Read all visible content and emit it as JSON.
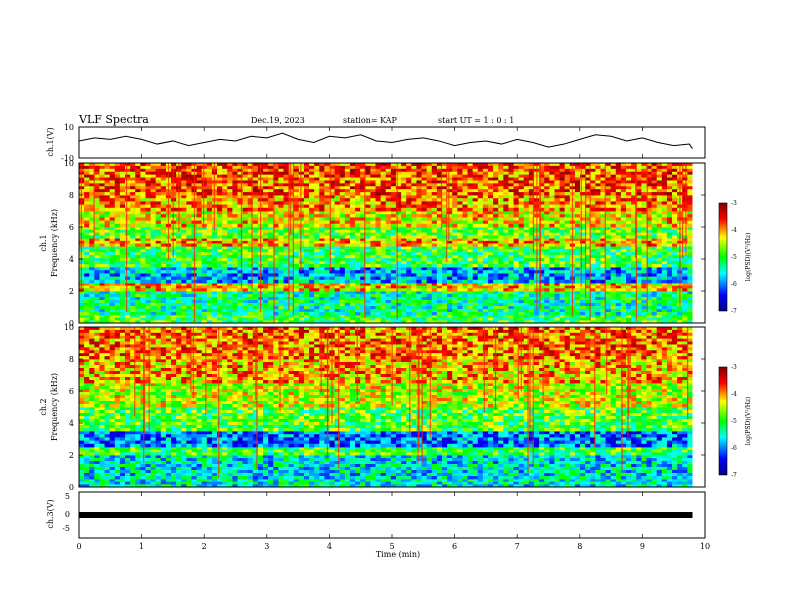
{
  "header": {
    "title": "VLF Spectra",
    "date": "Dec.19, 2023",
    "station": "station= KAP",
    "start": "start  UT =   1 : 0  : 1"
  },
  "colors": {
    "ch1_trace": "#000000",
    "ch3_trace": "#000000",
    "colormap": [
      "#000080",
      "#0000ff",
      "#00ffff",
      "#00ff00",
      "#ffff00",
      "#ff0000",
      "#800000"
    ]
  },
  "chart_data": [
    {
      "type": "line",
      "panel": "ch1",
      "ylabel": "ch.1(V)",
      "ylim": [
        -10,
        10
      ],
      "yticks": [
        "10",
        "-10"
      ],
      "xlim": [
        0,
        10
      ],
      "series": [
        {
          "x": [
            0,
            0.25,
            0.5,
            0.75,
            1,
            1.25,
            1.5,
            1.75,
            2,
            2.25,
            2.5,
            2.75,
            3,
            3.25,
            3.5,
            3.75,
            4,
            4.25,
            4.5,
            4.75,
            5,
            5.25,
            5.5,
            5.75,
            6,
            6.25,
            6.5,
            6.75,
            7,
            7.25,
            7.5,
            7.75,
            8,
            8.25,
            8.5,
            8.75,
            9,
            9.25,
            9.5,
            9.75,
            9.8
          ],
          "y": [
            1,
            3,
            2,
            4,
            2,
            -1,
            1,
            -2,
            0,
            2,
            1,
            4,
            3,
            6,
            2,
            0,
            4,
            3,
            5,
            1,
            0,
            2,
            3,
            1,
            -2,
            0,
            1,
            -1,
            2,
            0,
            -3,
            -1,
            2,
            5,
            4,
            1,
            3,
            0,
            -2,
            -1,
            -4
          ]
        }
      ]
    },
    {
      "type": "heatmap",
      "panel": "ch1-spectrogram",
      "ylabel": "ch.1\nFrequency (kHz)",
      "ylim": [
        0,
        10
      ],
      "yticks": [
        "0",
        "2",
        "4",
        "6",
        "8",
        "10"
      ],
      "xlim": [
        0,
        9.8
      ],
      "colorbar": {
        "label": "log(PSD)(V²/Hz)",
        "range": [
          -7,
          -3
        ],
        "ticks": [
          "-3",
          "-4",
          "-5",
          "-6",
          "-7"
        ]
      },
      "bands": [
        {
          "f0": 0,
          "f1": 0.5,
          "level": -5
        },
        {
          "f0": 0.5,
          "f1": 2.0,
          "level": -5.3
        },
        {
          "f0": 2.0,
          "f1": 2.5,
          "level": -4.2
        },
        {
          "f0": 2.5,
          "f1": 3.5,
          "level": -5.8
        },
        {
          "f0": 3.5,
          "f1": 4.8,
          "level": -5.0
        },
        {
          "f0": 4.8,
          "f1": 5.3,
          "level": -4.1
        },
        {
          "f0": 5.3,
          "f1": 6.0,
          "level": -4.8
        },
        {
          "f0": 6.0,
          "f1": 7.0,
          "level": -4.3
        },
        {
          "f0": 7.0,
          "f1": 8.0,
          "level": -4.0
        },
        {
          "f0": 8.0,
          "f1": 10.0,
          "level": -3.8
        }
      ]
    },
    {
      "type": "heatmap",
      "panel": "ch2-spectrogram",
      "ylabel": "ch.2\nFrequency (kHz)",
      "ylim": [
        0,
        10
      ],
      "yticks": [
        "0",
        "2",
        "4",
        "6",
        "8",
        "10"
      ],
      "xlim": [
        0,
        9.8
      ],
      "colorbar": {
        "label": "log(PSD)(V²/Hz)",
        "range": [
          -7,
          -3
        ],
        "ticks": [
          "-3",
          "-4",
          "-5",
          "-6",
          "-7"
        ]
      },
      "bands": [
        {
          "f0": 0,
          "f1": 0.5,
          "level": -5.5
        },
        {
          "f0": 0.5,
          "f1": 2.0,
          "level": -5.6
        },
        {
          "f0": 2.0,
          "f1": 2.5,
          "level": -5.0
        },
        {
          "f0": 2.5,
          "f1": 3.5,
          "level": -6.0
        },
        {
          "f0": 3.5,
          "f1": 5.0,
          "level": -4.9
        },
        {
          "f0": 5.0,
          "f1": 6.5,
          "level": -4.5
        },
        {
          "f0": 6.5,
          "f1": 8.0,
          "level": -4.1
        },
        {
          "f0": 8.0,
          "f1": 10.0,
          "level": -3.9
        }
      ]
    },
    {
      "type": "line",
      "panel": "ch3",
      "ylabel": "ch.3(V)",
      "ylim": [
        -5,
        5
      ],
      "yticks": [
        "5",
        "0",
        "-5"
      ],
      "xlim": [
        0,
        10
      ],
      "xlabel": "Time (min)",
      "xticks": [
        "0",
        "1",
        "2",
        "3",
        "4",
        "5",
        "6",
        "7",
        "8",
        "9",
        "10"
      ],
      "series": [
        {
          "x": [
            0,
            9.8
          ],
          "y": [
            0,
            0
          ]
        }
      ]
    }
  ]
}
